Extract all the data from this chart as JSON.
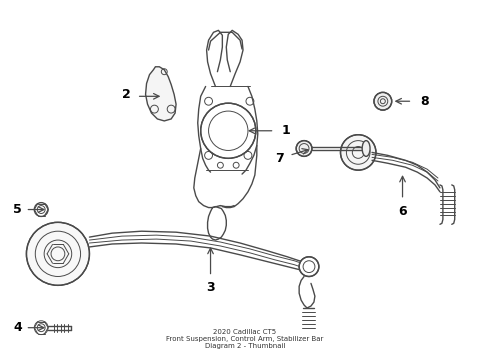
{
  "background_color": "#ffffff",
  "line_color": "#4a4a4a",
  "figsize": [
    4.9,
    3.6
  ],
  "dpi": 100,
  "title": "2020 Cadillac CT5\nFront Suspension, Control Arm, Stabilizer Bar\nDiagram 2 - Thumbnail"
}
